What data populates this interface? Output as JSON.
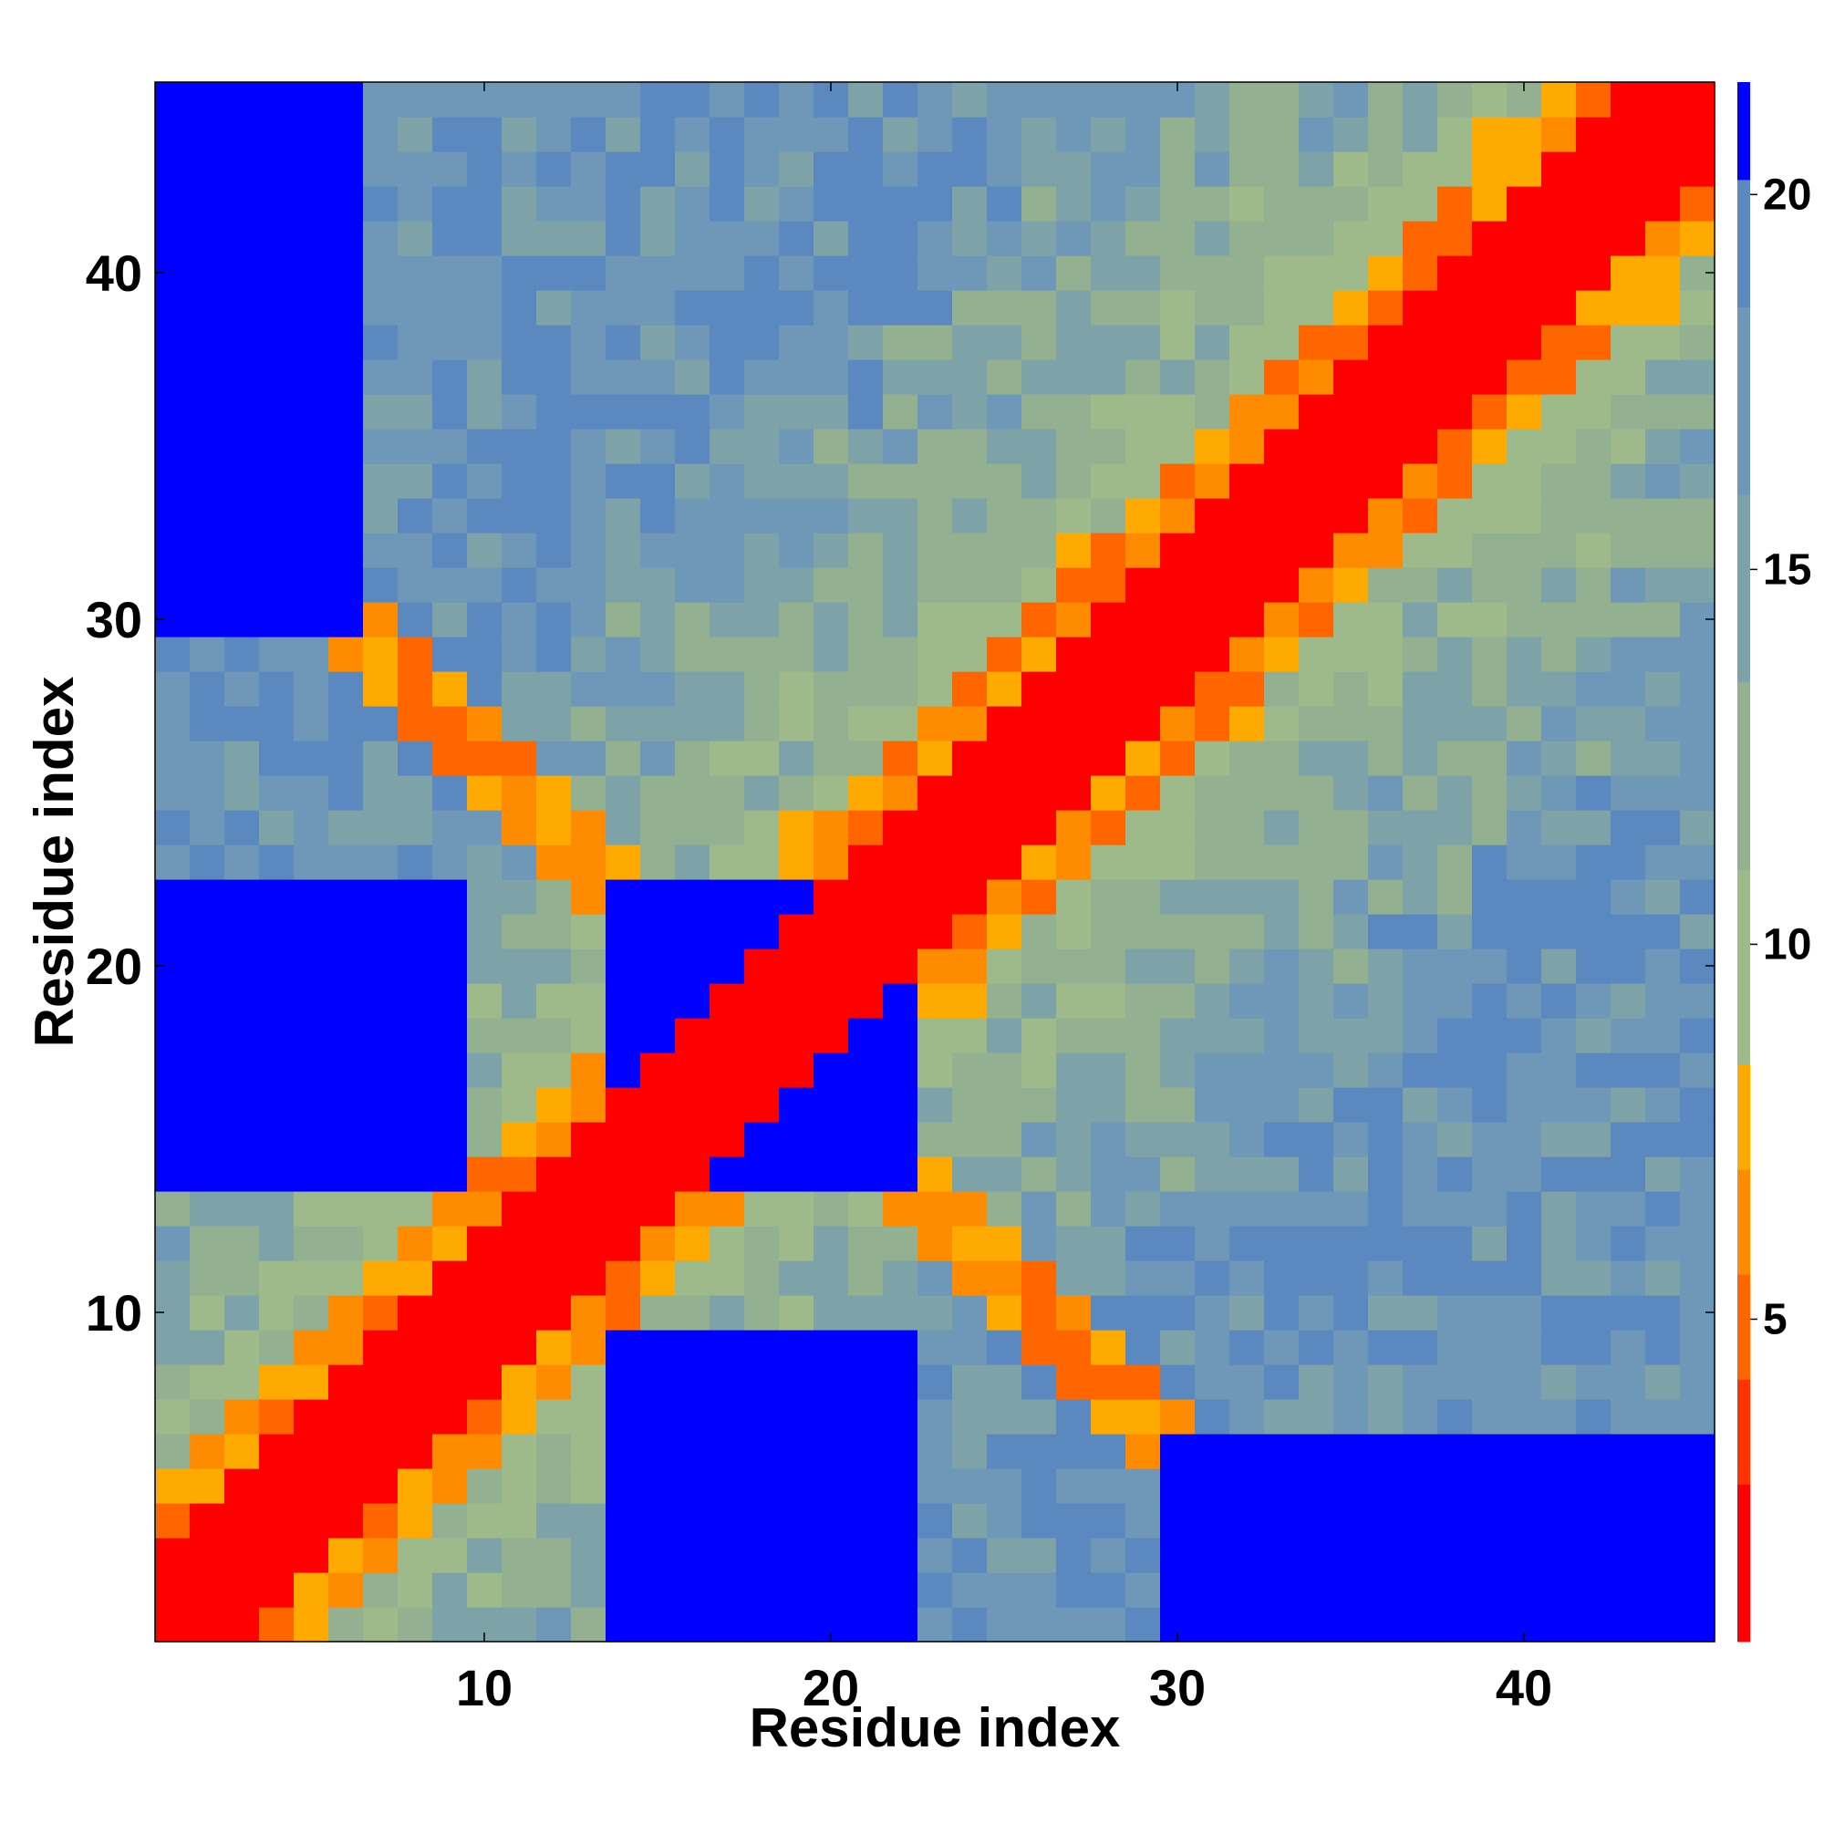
{
  "chart_data": {
    "type": "heatmap",
    "title": "",
    "xlabel": "Residue index",
    "ylabel": "Residue index",
    "x_range": [
      1,
      45
    ],
    "y_range": [
      1,
      45
    ],
    "x_ticks": [
      10,
      20,
      30,
      40
    ],
    "y_ticks": [
      10,
      20,
      30,
      40
    ],
    "colorbar": {
      "ticks": [
        5,
        10,
        15,
        20
      ],
      "range": [
        0.7,
        21.5
      ],
      "levels": [
        {
          "from": 0.7,
          "to": 2.8,
          "color": "#ff0000"
        },
        {
          "from": 2.8,
          "to": 4.2,
          "color": "#ff3300"
        },
        {
          "from": 4.2,
          "to": 5.6,
          "color": "#ff6600"
        },
        {
          "from": 5.6,
          "to": 7.0,
          "color": "#ff8c00"
        },
        {
          "from": 7.0,
          "to": 8.4,
          "color": "#ffaa00"
        },
        {
          "from": 8.4,
          "to": 11.0,
          "color": "#9eba8a"
        },
        {
          "from": 11.0,
          "to": 13.5,
          "color": "#93b091"
        },
        {
          "from": 13.5,
          "to": 16.0,
          "color": "#7da3a8"
        },
        {
          "from": 16.0,
          "to": 18.5,
          "color": "#6f98b8"
        },
        {
          "from": 18.5,
          "to": 20.2,
          "color": "#5b88bf"
        },
        {
          "from": 20.2,
          "to": 21.5,
          "color": "#0000ff"
        }
      ]
    },
    "grid": false,
    "legend": "colorbar-right",
    "pattern": {
      "description": "symmetric residue-residue distance map; values near 1 on the main diagonal, rising with sequence separation; contacts (<8) along diagonal |i-j|<=4 and in anti-diagonal band near i+j=36; far-distance (>20) regions in upper-center and lower-right/lower-left blocks",
      "diagonal_value": 1,
      "contact_band_sum": 36,
      "far_blocks": [
        {
          "i_range": [
            1,
            9
          ],
          "j_range": [
            14,
            22
          ]
        },
        {
          "i_range": [
            15,
            22
          ],
          "j_range": [
            14,
            22
          ]
        },
        {
          "i_range": [
            1,
            6
          ],
          "j_range": [
            30,
            45
          ]
        }
      ]
    }
  }
}
